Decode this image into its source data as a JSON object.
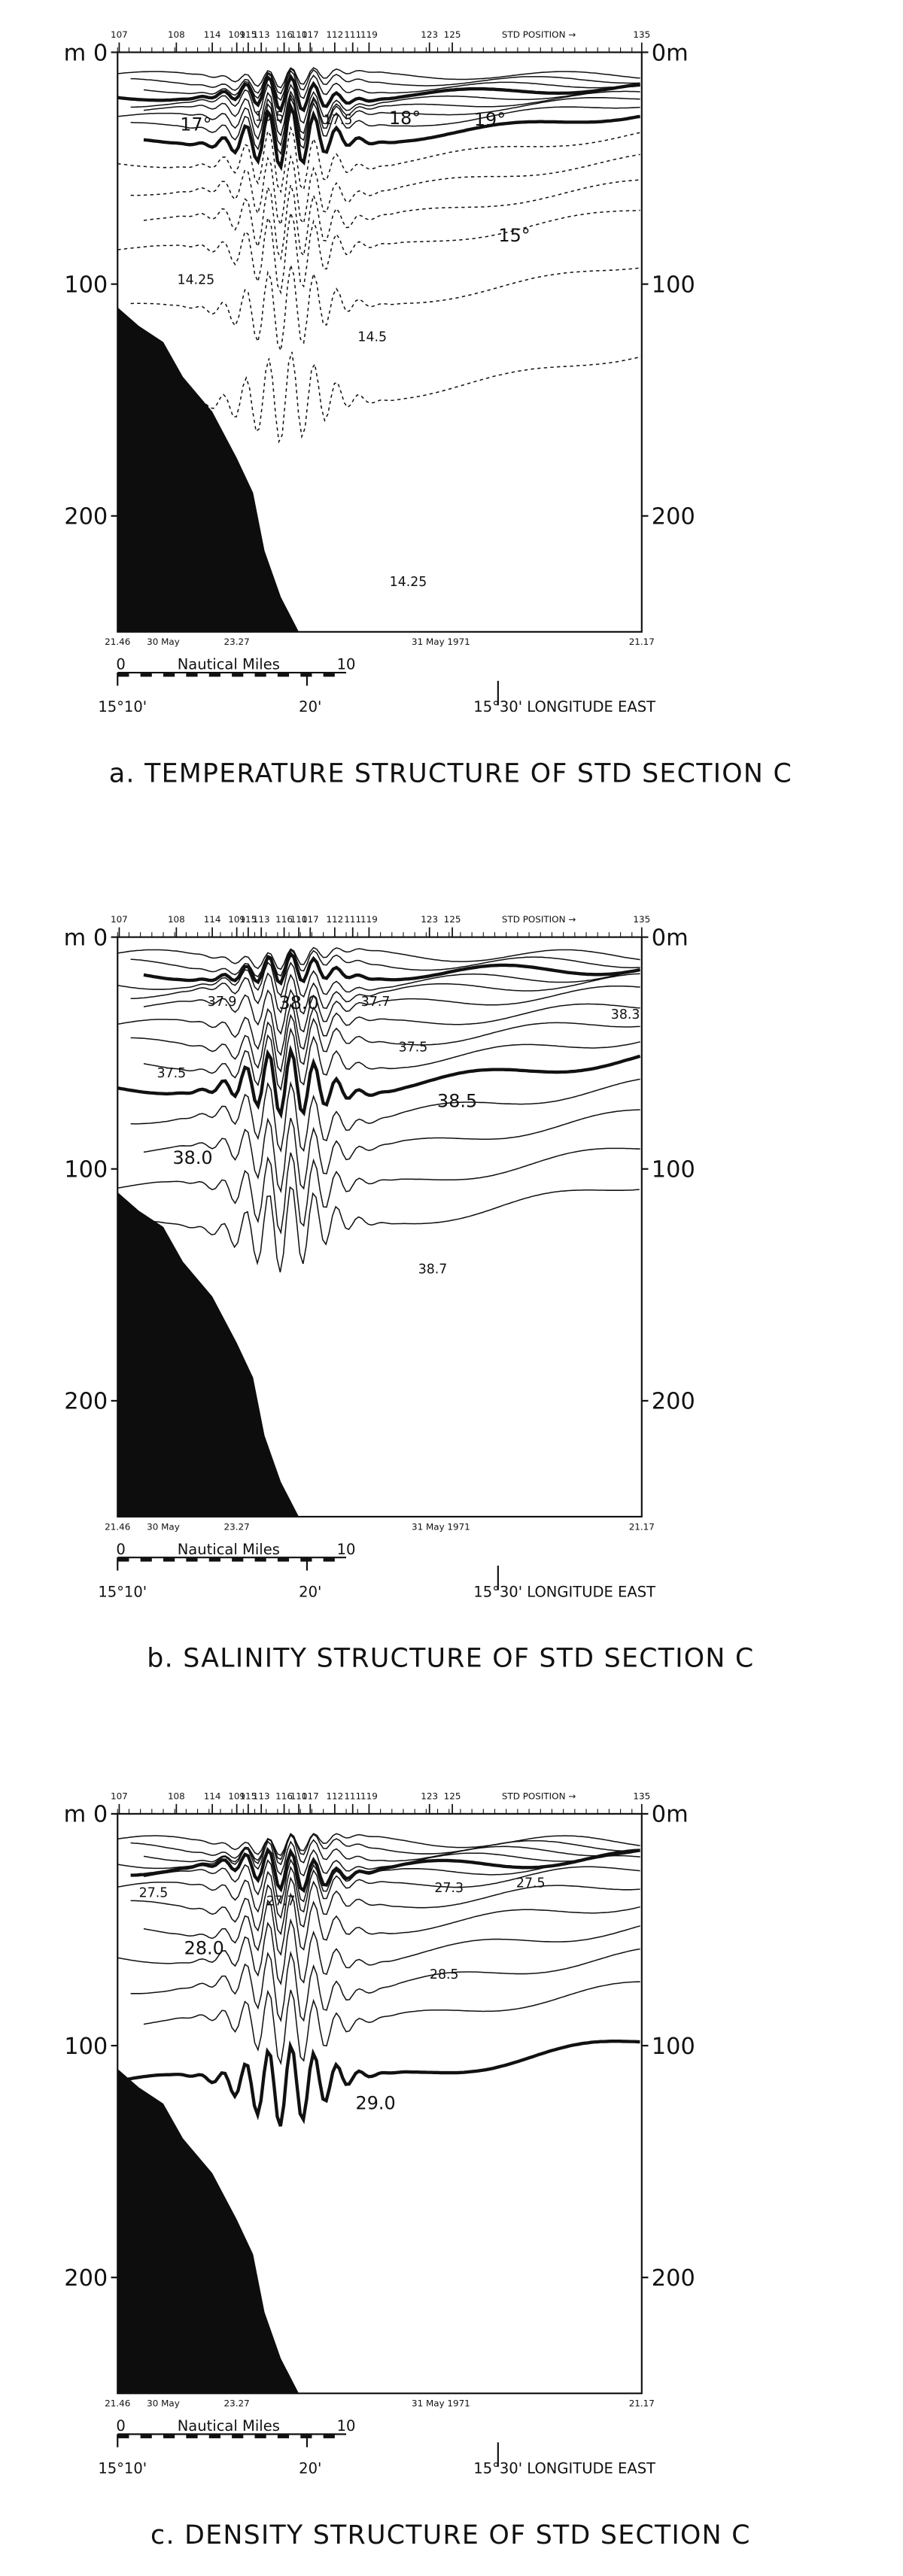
{
  "panels": [
    {
      "title": "a. TEMPERATURE STRUCTURE OF STD SECTION C",
      "stations": [
        "107",
        "108",
        "114",
        "109",
        "115",
        "113",
        "116",
        "110",
        "117",
        "112",
        "111",
        "119",
        "123",
        "125",
        "135"
      ],
      "std_position": "STD POSITION →",
      "left_depths": [
        "m 0",
        "100",
        "200"
      ],
      "right_depths": [
        "0m",
        "100",
        "200"
      ],
      "contour_labels": [
        "17°",
        "18.5",
        "17.5",
        "18°",
        "19°",
        "15°",
        "14.25",
        "14.5",
        "14.25"
      ],
      "dates": [
        "21.46",
        "30 May",
        "23.27",
        "31 May 1971",
        "21.17"
      ],
      "scale": [
        "0",
        "Nautical Miles",
        "10"
      ],
      "longitudes": [
        "15°10'",
        "20'",
        "15°30'  LONGITUDE EAST"
      ]
    },
    {
      "title": "b. SALINITY STRUCTURE OF STD SECTION C",
      "stations": [
        "107",
        "108",
        "114",
        "109",
        "115",
        "113",
        "116",
        "110",
        "117",
        "112",
        "111",
        "119",
        "123",
        "125",
        "135"
      ],
      "std_position": "STD POSITION →",
      "left_depths": [
        "m 0",
        "100",
        "200"
      ],
      "right_depths": [
        "0m",
        "100",
        "200"
      ],
      "contour_labels": [
        "37.9",
        "38.0",
        "37.7",
        "37.5",
        "38.3",
        "37.5",
        "38.5",
        "38.0",
        "38.7"
      ],
      "dates": [
        "21.46",
        "30 May",
        "23.27",
        "31 May 1971",
        "21.17"
      ],
      "scale": [
        "0",
        "Nautical Miles",
        "10"
      ],
      "longitudes": [
        "15°10'",
        "20'",
        "15°30'  LONGITUDE EAST"
      ]
    },
    {
      "title": "c. DENSITY STRUCTURE OF STD SECTION C",
      "stations": [
        "107",
        "108",
        "114",
        "109",
        "115",
        "113",
        "116",
        "110",
        "117",
        "112",
        "111",
        "119",
        "123",
        "125",
        "135"
      ],
      "std_position": "STD POSITION →",
      "left_depths": [
        "m 0",
        "100",
        "200"
      ],
      "right_depths": [
        "0m",
        "100",
        "200"
      ],
      "contour_labels": [
        "27.5",
        "27.7",
        "27.3",
        "27.5",
        "28.0",
        "28.5",
        "29.0"
      ],
      "dates": [
        "21.46",
        "30 May",
        "23.27",
        "31 May 1971",
        "21.17"
      ],
      "scale": [
        "0",
        "Nautical Miles",
        "10"
      ],
      "longitudes": [
        "15°10'",
        "20'",
        "15°30'  LONGITUDE EAST"
      ]
    }
  ]
}
